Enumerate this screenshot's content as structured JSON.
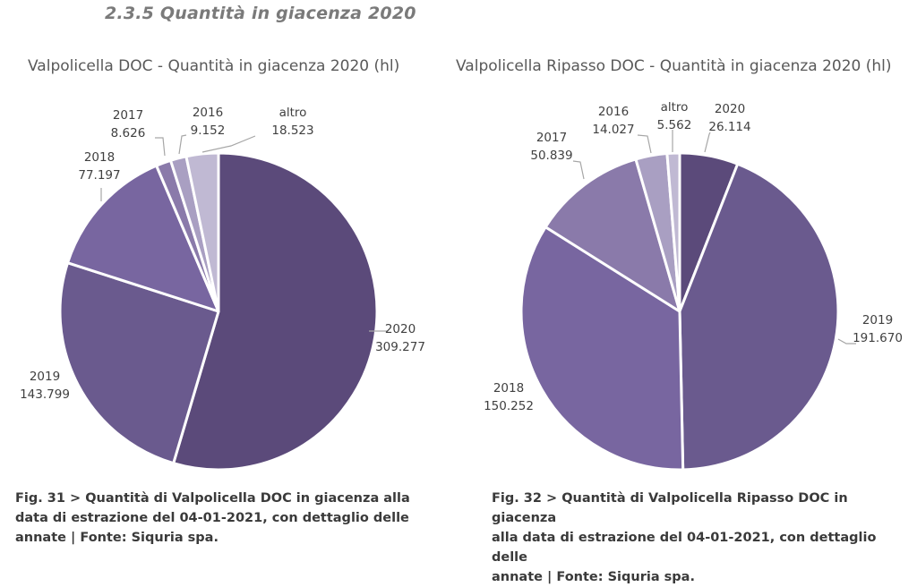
{
  "section_title": "2.3.5 Quantità in giacenza 2020",
  "captions": {
    "left": [
      "Fig. 31 > Quantità di Valpolicella DOC in giacenza alla",
      "data di estrazione del 04-01-2021, con dettaglio delle",
      "annate | Fonte: Siquria spa."
    ],
    "right": [
      "Fig. 32 > Quantità di Valpolicella Ripasso DOC in giacenza",
      "alla data di estrazione del 04-01-2021, con dettaglio delle",
      "annate | Fonte: Siquria spa."
    ]
  },
  "colors": {
    "2020": "#5b4a7a",
    "2019": "#6a5a8e",
    "2018": "#7866a0",
    "2017": "#8a7aaa",
    "2016": "#a99fc2",
    "altro": "#c0b9d3",
    "leader": "#a6a6a6",
    "separator": "#ffffff"
  },
  "chart_data": [
    {
      "type": "pie",
      "title": "Valpolicella DOC - Quantità in giacenza 2020 (hl)",
      "unit": "hl",
      "start": "12 o'clock",
      "direction": "clockwise",
      "slices": [
        {
          "label": "2020",
          "value": 309277,
          "display": "309.277"
        },
        {
          "label": "2019",
          "value": 143799,
          "display": "143.799"
        },
        {
          "label": "2018",
          "value": 77197,
          "display": "77.197"
        },
        {
          "label": "2017",
          "value": 8626,
          "display": "8.626"
        },
        {
          "label": "2016",
          "value": 9152,
          "display": "9.152"
        },
        {
          "label": "altro",
          "value": 18523,
          "display": "18.523"
        }
      ]
    },
    {
      "type": "pie",
      "title": "Valpolicella Ripasso DOC - Quantità in giacenza 2020 (hl)",
      "unit": "hl",
      "start": "12 o'clock",
      "direction": "clockwise",
      "slices": [
        {
          "label": "2020",
          "value": 26114,
          "display": "26.114"
        },
        {
          "label": "2019",
          "value": 191670,
          "display": "191.670"
        },
        {
          "label": "2018",
          "value": 150252,
          "display": "150.252"
        },
        {
          "label": "2017",
          "value": 50839,
          "display": "50.839"
        },
        {
          "label": "2016",
          "value": 14027,
          "display": "14.027"
        },
        {
          "label": "altro",
          "value": 5562,
          "display": "5.562"
        }
      ]
    }
  ]
}
